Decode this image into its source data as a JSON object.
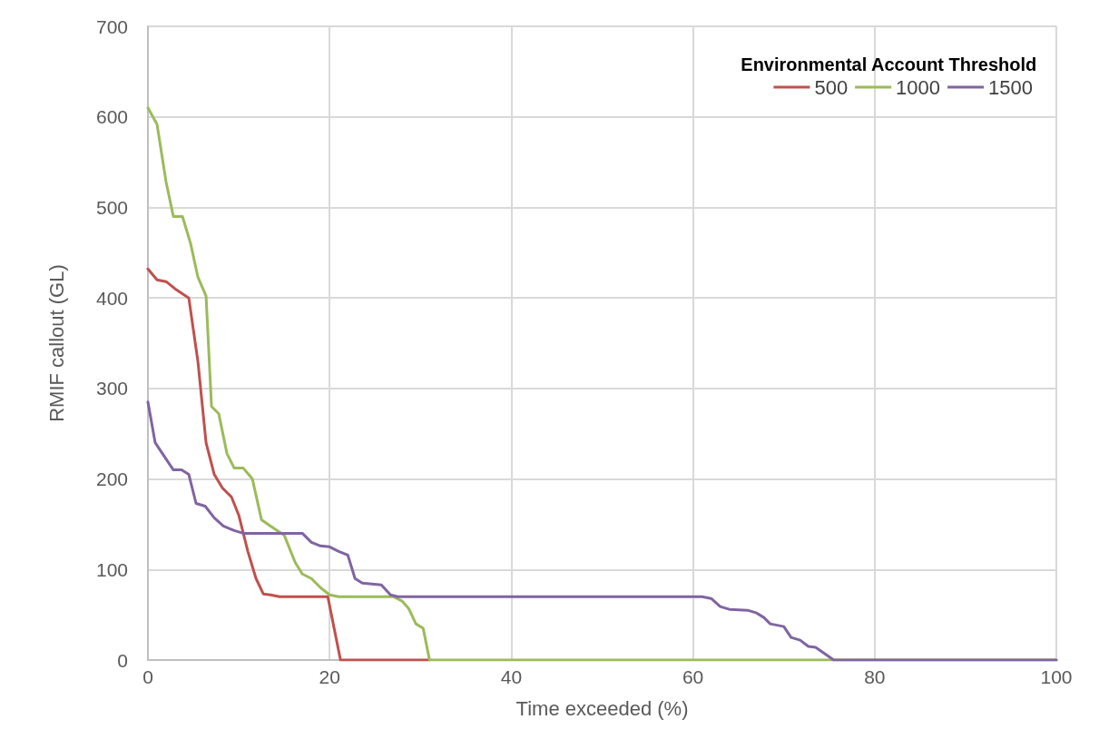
{
  "chart_data": {
    "type": "line",
    "xlabel": "Time exceeded (%)",
    "ylabel": "RMIF callout (GL)",
    "legend_title": "Environmental Account Threshold",
    "legend": "top right",
    "grid": true,
    "marker": "none",
    "line_style": "solid",
    "xlim": [
      0,
      100
    ],
    "xticks": [
      0,
      20,
      40,
      60,
      80,
      100
    ],
    "ylim": [
      0,
      700
    ],
    "yticks": [
      0,
      100,
      200,
      300,
      400,
      500,
      600,
      700
    ],
    "series": [
      {
        "name": "500",
        "color": "#c0504d",
        "x": [
          0,
          1,
          2,
          3,
          4.5,
          5.5,
          6.4,
          7.3,
          8.2,
          9.2,
          10,
          11,
          11.9,
          12.7,
          13.5,
          14.5,
          19.8,
          20.5,
          21.2,
          31
        ],
        "values": [
          432,
          420,
          418,
          410,
          400,
          330,
          240,
          205,
          190,
          180,
          160,
          120,
          90,
          73,
          72,
          70,
          70,
          35,
          0,
          0
        ]
      },
      {
        "name": "1000",
        "color": "#9bbb59",
        "x": [
          0,
          1,
          2,
          2.8,
          3.8,
          4.7,
          5.5,
          6.4,
          7,
          7.8,
          8.7,
          9.5,
          10.5,
          11.5,
          12.5,
          13.5,
          15,
          16.2,
          17,
          18,
          19,
          20,
          21,
          27,
          28,
          28.7,
          29.5,
          30.3,
          31,
          100
        ],
        "values": [
          610,
          592,
          528,
          490,
          490,
          460,
          423,
          402,
          280,
          272,
          228,
          212,
          212,
          200,
          155,
          148,
          138,
          108,
          95,
          90,
          80,
          72,
          70,
          70,
          65,
          57,
          40,
          35,
          0,
          0
        ]
      },
      {
        "name": "1500",
        "color": "#8064a2",
        "x": [
          0,
          0.8,
          2,
          2.8,
          3.7,
          4.5,
          5.3,
          6.3,
          7.3,
          8.3,
          9.5,
          10.5,
          17,
          18,
          19,
          20,
          21,
          22,
          22.8,
          23.6,
          25.7,
          26.7,
          27.5,
          61,
          62,
          63,
          64,
          66,
          67,
          67.8,
          68.5,
          70,
          70.8,
          71.8,
          72.7,
          73.5,
          74.5,
          75.5,
          100
        ],
        "values": [
          285,
          240,
          222,
          210,
          210,
          205,
          173,
          170,
          157,
          148,
          143,
          140,
          140,
          130,
          126,
          125,
          120,
          116,
          90,
          85,
          83,
          72,
          70,
          70,
          68,
          59,
          56,
          55,
          52,
          47,
          40,
          37,
          25,
          22,
          15,
          14,
          7,
          0,
          0
        ]
      }
    ]
  }
}
